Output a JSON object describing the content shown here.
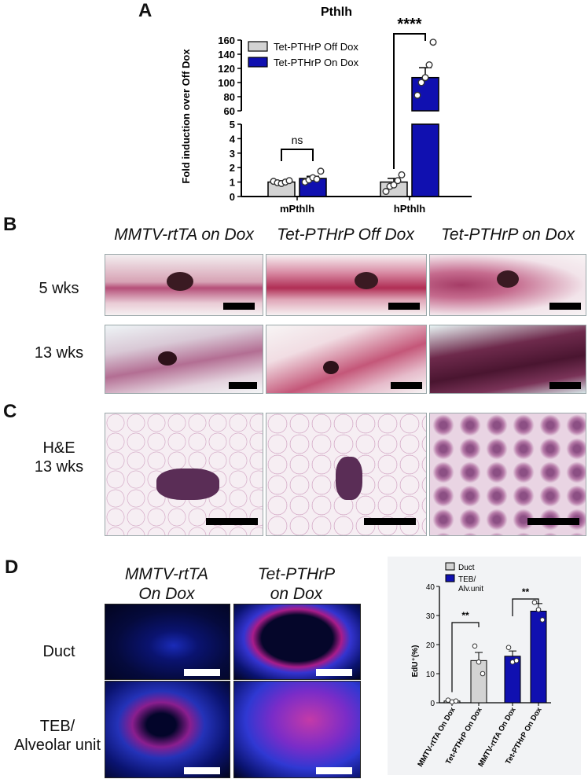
{
  "panel_labels": {
    "a": "A",
    "b": "B",
    "c": "C",
    "d": "D"
  },
  "chart_data": [
    {
      "type": "bar",
      "title": "Pthlh",
      "ylabel": "Fold induction over Off Dox",
      "categories": [
        "mPthlh",
        "hPthlh"
      ],
      "series": [
        {
          "name": "Tet-PTHrP Off Dox",
          "color": "#d3d3d3",
          "values": [
            1.0,
            1.0
          ],
          "sem": [
            0.1,
            0.25
          ],
          "points": [
            [
              1.05,
              0.95,
              0.9,
              1.0,
              1.1
            ],
            [
              0.35,
              0.7,
              0.8,
              1.1,
              1.5
            ]
          ]
        },
        {
          "name": "Tet-PTHrP On Dox",
          "color": "#1010b0",
          "values": [
            1.25,
            107
          ],
          "sem": [
            0.15,
            14
          ],
          "points": [
            [
              1.0,
              1.15,
              1.3,
              1.2,
              1.75
            ],
            [
              82,
              100,
              107,
              125,
              157
            ]
          ]
        }
      ],
      "ylim_lower": [
        0,
        5
      ],
      "ylim_upper": [
        60,
        160
      ],
      "yticks_lower": [
        "0",
        "1",
        "2",
        "3",
        "4",
        "5"
      ],
      "yticks_upper": [
        "60",
        "80",
        "100",
        "120",
        "140",
        "160"
      ],
      "annotations": [
        "ns",
        "****"
      ],
      "legend": "top-left"
    },
    {
      "type": "bar",
      "ylabel": "EdU⁺(%)",
      "categories": [
        "MMTV-rtTA On Dox",
        "Tet-PTHrP On Dox",
        "MMTV-rtTA On Dox",
        "Tet-PTHrP On Dox"
      ],
      "values": [
        0.6,
        14.5,
        16,
        31.5
      ],
      "sem": [
        0.3,
        2.8,
        1.8,
        2.6
      ],
      "bar_colors": [
        "#d3d3d3",
        "#d3d3d3",
        "#1010b0",
        "#1010b0"
      ],
      "points": [
        [
          0.9,
          0.3,
          0.6
        ],
        [
          19.5,
          14,
          10
        ],
        [
          19,
          14,
          14.5
        ],
        [
          34.5,
          32,
          28.5
        ]
      ],
      "series_legend": [
        {
          "name": "Duct",
          "color": "#d3d3d3"
        },
        {
          "name": "TEB/ Alv.unit",
          "color": "#1010b0"
        }
      ],
      "ylim": [
        0,
        40
      ],
      "yticks": [
        "0",
        "10",
        "20",
        "30",
        "40"
      ],
      "annotations": [
        "**",
        "**"
      ],
      "legend": "top-left"
    }
  ],
  "panel_b": {
    "columns": [
      "MMTV-rtTA on Dox",
      "Tet-PTHrP Off Dox",
      "Tet-PTHrP on Dox"
    ],
    "rows": [
      "5 wks",
      "13 wks"
    ]
  },
  "panel_c": {
    "row_label_1": "H&E",
    "row_label_2": "13 wks"
  },
  "panel_d": {
    "col1_line1": "MMTV-rtTA",
    "col1_line2": "On Dox",
    "col2_line1": "Tet-PTHrP",
    "col2_line2": "on Dox",
    "row1": "Duct",
    "row2_line1": "TEB/",
    "row2_line2": "Alveolar unit"
  }
}
